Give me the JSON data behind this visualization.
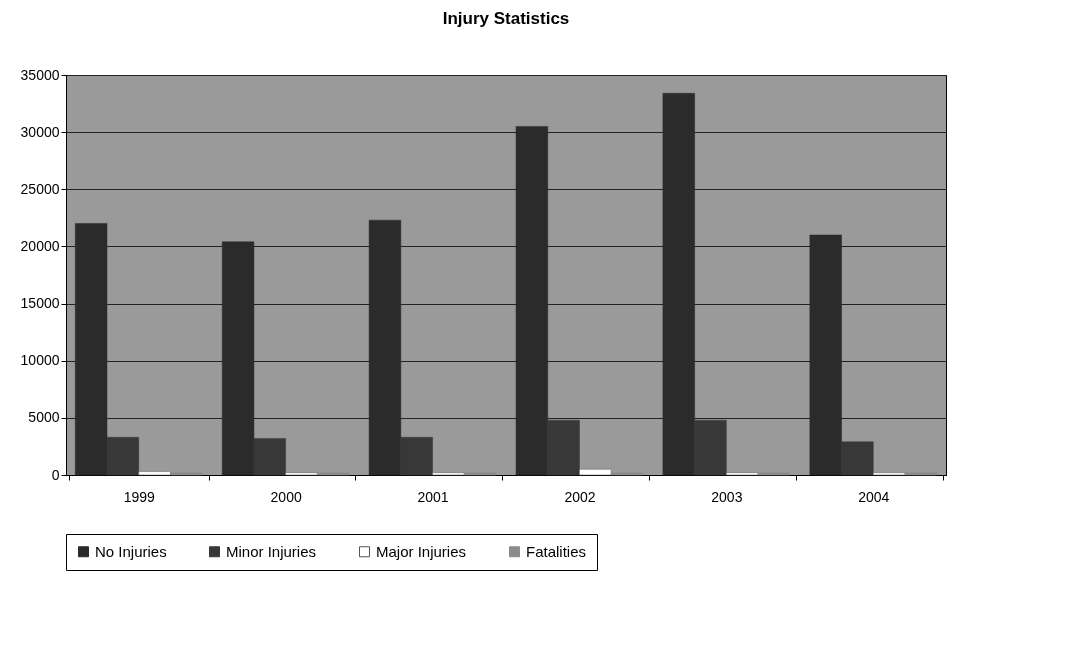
{
  "chart_data": {
    "type": "bar",
    "title": "Injury Statistics",
    "categories": [
      "1999",
      "2000",
      "2001",
      "2002",
      "2003",
      "2004"
    ],
    "series": [
      {
        "name": "No Injuries",
        "color": "#2b2b2b",
        "values": [
          22000,
          20400,
          22300,
          30500,
          33400,
          21000
        ]
      },
      {
        "name": "Minor Injuries",
        "color": "#383838",
        "values": [
          3300,
          3200,
          3300,
          4800,
          4800,
          2900
        ]
      },
      {
        "name": "Major Injuries",
        "color": "#ffffff",
        "values": [
          300,
          200,
          200,
          500,
          200,
          200
        ]
      },
      {
        "name": "Fatalities",
        "color": "#8c8c8c",
        "values": [
          200,
          200,
          200,
          200,
          200,
          200
        ]
      }
    ],
    "ylim": [
      0,
      35000
    ],
    "yticks": [
      0,
      5000,
      10000,
      15000,
      20000,
      25000,
      30000,
      35000
    ],
    "grid": "y",
    "legend": "bottom"
  }
}
